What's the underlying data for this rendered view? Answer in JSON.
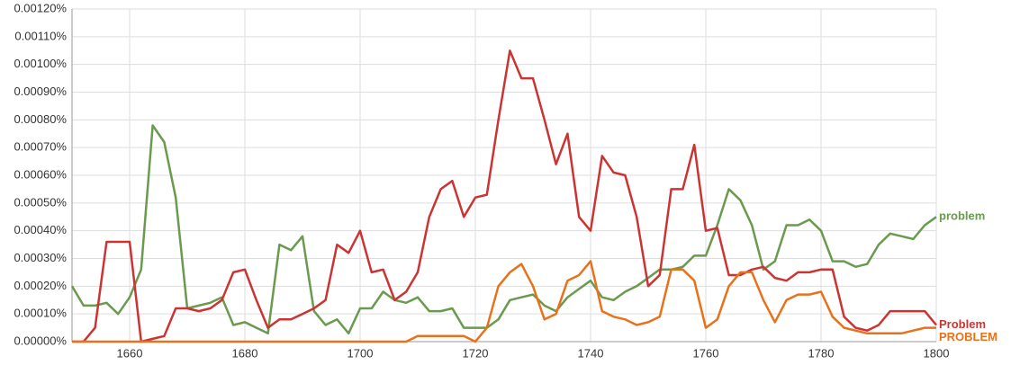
{
  "chart_data": {
    "type": "line",
    "x": [
      1650,
      1652,
      1654,
      1656,
      1658,
      1660,
      1662,
      1664,
      1666,
      1668,
      1670,
      1672,
      1674,
      1676,
      1678,
      1680,
      1682,
      1684,
      1686,
      1688,
      1690,
      1692,
      1694,
      1696,
      1698,
      1700,
      1702,
      1704,
      1706,
      1708,
      1710,
      1712,
      1714,
      1716,
      1718,
      1720,
      1722,
      1724,
      1726,
      1728,
      1730,
      1732,
      1734,
      1736,
      1738,
      1740,
      1742,
      1744,
      1746,
      1748,
      1750,
      1752,
      1754,
      1756,
      1758,
      1760,
      1762,
      1764,
      1766,
      1768,
      1770,
      1772,
      1774,
      1776,
      1778,
      1780,
      1782,
      1784,
      1786,
      1788,
      1790,
      1792,
      1794,
      1796,
      1798,
      1800
    ],
    "series": [
      {
        "name": "problem",
        "color": "#6a9a4e",
        "values": [
          0.0002,
          0.00013,
          0.00013,
          0.00014,
          0.0001,
          0.00016,
          0.00026,
          0.00078,
          0.00072,
          0.00052,
          0.00012,
          0.00013,
          0.00014,
          0.00016,
          6e-05,
          7e-05,
          5e-05,
          3e-05,
          0.00035,
          0.00033,
          0.00038,
          0.00011,
          6e-05,
          8e-05,
          3e-05,
          0.00012,
          0.00012,
          0.00018,
          0.00015,
          0.00014,
          0.00016,
          0.00011,
          0.00011,
          0.00012,
          5e-05,
          5e-05,
          5e-05,
          8e-05,
          0.00015,
          0.00016,
          0.00017,
          0.00013,
          0.00011,
          0.00016,
          0.00019,
          0.00022,
          0.00016,
          0.00015,
          0.00018,
          0.0002,
          0.00023,
          0.00026,
          0.00026,
          0.00027,
          0.00031,
          0.00031,
          0.00042,
          0.00055,
          0.00051,
          0.00042,
          0.00026,
          0.00029,
          0.00042,
          0.00042,
          0.00044,
          0.0004,
          0.00029,
          0.00029,
          0.00027,
          0.00028,
          0.00035,
          0.00039,
          0.00038,
          0.00037,
          0.00042,
          0.00045
        ]
      },
      {
        "name": "Problem",
        "color": "#cc3333",
        "values": [
          0,
          0,
          5e-05,
          0.00036,
          0.00036,
          0.00036,
          0,
          1e-05,
          2e-05,
          0.00012,
          0.00012,
          0.00011,
          0.00012,
          0.00015,
          0.00025,
          0.00026,
          0.00015,
          5e-05,
          8e-05,
          8e-05,
          0.0001,
          0.00012,
          0.00015,
          0.00035,
          0.00032,
          0.0004,
          0.00025,
          0.00026,
          0.00015,
          0.00018,
          0.00025,
          0.00045,
          0.00055,
          0.00058,
          0.00045,
          0.00052,
          0.00053,
          0.0008,
          0.00105,
          0.00095,
          0.00095,
          0.0008,
          0.00064,
          0.00075,
          0.00045,
          0.0004,
          0.00067,
          0.00061,
          0.0006,
          0.00045,
          0.0002,
          0.00024,
          0.00055,
          0.00055,
          0.00071,
          0.0004,
          0.00041,
          0.00024,
          0.00024,
          0.00026,
          0.00027,
          0.00023,
          0.00022,
          0.00025,
          0.00025,
          0.00026,
          0.00026,
          9e-05,
          5e-05,
          4e-05,
          6e-05,
          0.00011,
          0.00011,
          0.00011,
          0.00011,
          6e-05
        ]
      },
      {
        "name": "PROBLEM",
        "color": "#e8721c",
        "values": [
          0,
          0,
          0,
          0,
          0,
          0,
          0,
          0,
          0,
          0,
          0,
          0,
          0,
          0,
          0,
          0,
          0,
          0,
          0,
          0,
          0,
          0,
          0,
          0,
          0,
          0,
          0,
          0,
          0,
          0,
          2e-05,
          2e-05,
          2e-05,
          2e-05,
          2e-05,
          0,
          5e-05,
          0.0002,
          0.00025,
          0.00028,
          0.0002,
          8e-05,
          0.0001,
          0.00022,
          0.00024,
          0.00029,
          0.00011,
          9e-05,
          8e-05,
          6e-05,
          7e-05,
          9e-05,
          0.00026,
          0.00026,
          0.00022,
          5e-05,
          8e-05,
          0.0002,
          0.00025,
          0.00025,
          0.00015,
          7e-05,
          0.00015,
          0.00017,
          0.00017,
          0.00018,
          9e-05,
          5e-05,
          4e-05,
          3e-05,
          3e-05,
          3e-05,
          3e-05,
          4e-05,
          5e-05,
          5e-05
        ]
      }
    ],
    "xlim": [
      1650,
      1800
    ],
    "xticks": [
      1660,
      1680,
      1700,
      1720,
      1740,
      1760,
      1780,
      1800
    ],
    "ylim": [
      0,
      0.0012
    ],
    "yticks": [
      {
        "value": 0,
        "label": "0.00000%"
      },
      {
        "value": 0.0001,
        "label": "0.00010%"
      },
      {
        "value": 0.0002,
        "label": "0.00020%"
      },
      {
        "value": 0.0003,
        "label": "0.00030%"
      },
      {
        "value": 0.0004,
        "label": "0.00040%"
      },
      {
        "value": 0.0005,
        "label": "0.00050%"
      },
      {
        "value": 0.0006,
        "label": "0.00060%"
      },
      {
        "value": 0.0007,
        "label": "0.00070%"
      },
      {
        "value": 0.0008,
        "label": "0.00080%"
      },
      {
        "value": 0.0009,
        "label": "0.00090%"
      },
      {
        "value": 0.001,
        "label": "0.00100%"
      },
      {
        "value": 0.0011,
        "label": "0.00110%"
      },
      {
        "value": 0.0012,
        "label": "0.00120%"
      }
    ],
    "grid": true
  }
}
